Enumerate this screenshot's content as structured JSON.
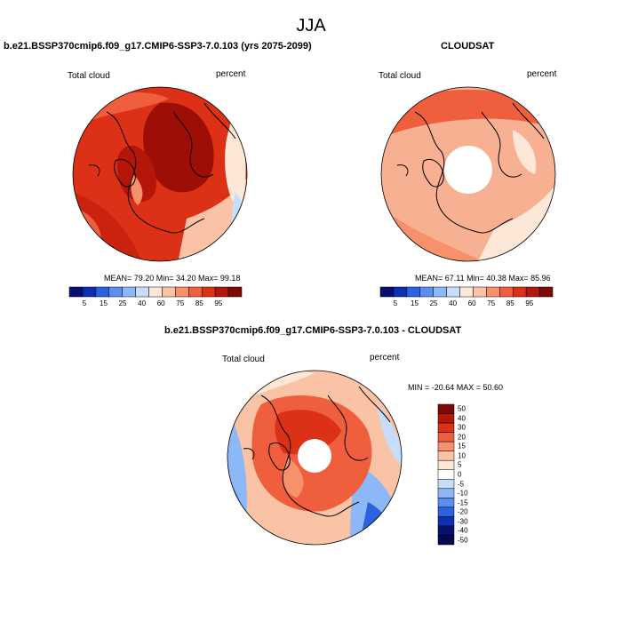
{
  "title": "JJA",
  "panels": [
    {
      "id": "model",
      "title": "b.e21.BSSP370cmip6.f09_g17.CMIP6-SSP3-7.0.103 (yrs 2075-2099)",
      "left_label": "Total cloud",
      "right_label": "percent",
      "stats": "MEAN=  79.20   Min=  34.20   Max=  99.18",
      "colorbar_ticks": [
        "5",
        "15",
        "25",
        "40",
        "60",
        "75",
        "85",
        "95"
      ]
    },
    {
      "id": "obs",
      "title": "CLOUDSAT",
      "left_label": "Total cloud",
      "right_label": "percent",
      "stats": "MEAN=  67.11   Min=  40.38   Max=  85.96",
      "colorbar_ticks": [
        "5",
        "15",
        "25",
        "40",
        "60",
        "75",
        "85",
        "95"
      ]
    },
    {
      "id": "diff",
      "title": "b.e21.BSSP370cmip6.f09_g17.CMIP6-SSP3-7.0.103 - CLOUDSAT",
      "left_label": "Total cloud",
      "right_label": "percent",
      "stats": "MIN = -20.64 MAX =  50.60",
      "colorbar_ticks": [
        "50",
        "40",
        "30",
        "20",
        "15",
        "10",
        "5",
        "0",
        "-5",
        "-10",
        "-15",
        "-20",
        "-30",
        "-40",
        "-50"
      ]
    }
  ],
  "colors": {
    "abs_scale": [
      "#08106e",
      "#0d2fb4",
      "#2a62e0",
      "#5a8ff0",
      "#8db8f7",
      "#c6ddfb",
      "#fde8d8",
      "#fbc3a5",
      "#f7916c",
      "#ef5e3d",
      "#dc3116",
      "#b5160a",
      "#7d0a04"
    ],
    "diff_scale": [
      "#7d0a04",
      "#b5160a",
      "#dc3116",
      "#ef5e3d",
      "#f7916c",
      "#fbc3a5",
      "#fde8d8",
      "#ffffff",
      "#c6ddfb",
      "#8db8f7",
      "#5a8ff0",
      "#2a62e0",
      "#0d2fb4",
      "#08106e",
      "#050a50"
    ]
  }
}
